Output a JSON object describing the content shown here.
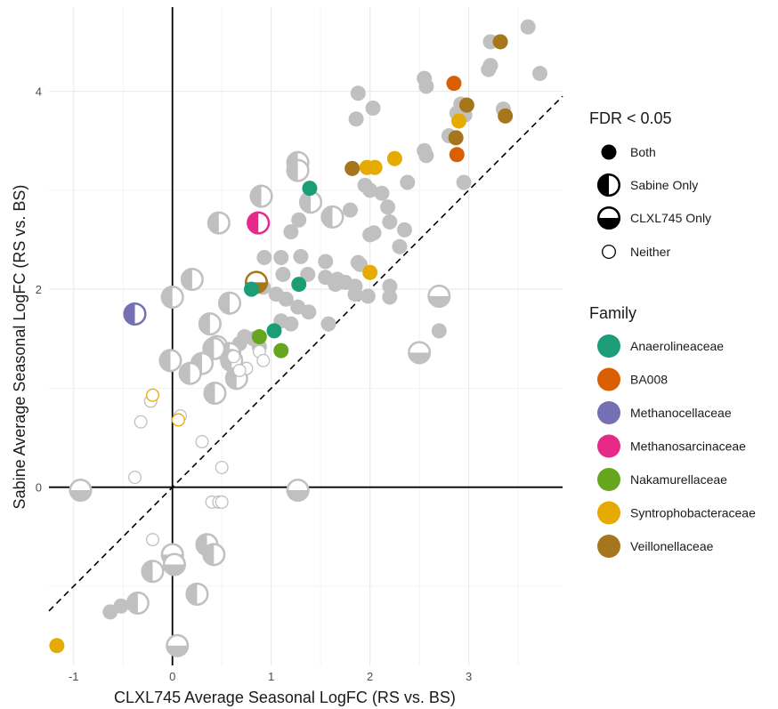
{
  "chart_data": {
    "type": "scatter",
    "xlabel": "CLXL745 Average Seasonal LogFC (RS vs. BS)",
    "ylabel": "Sabine Average Seasonal LogFC (RS vs. BS)",
    "xlim": [
      -1.25,
      3.95
    ],
    "ylim": [
      -1.8,
      4.85
    ],
    "x_ticks": [
      -1,
      0,
      1,
      2,
      3
    ],
    "y_ticks": [
      0,
      2,
      4
    ],
    "reference_line": {
      "type": "identity",
      "style": "dashed"
    },
    "grid": true,
    "legend_position": "right",
    "legends": {
      "fdr": {
        "title": "FDR < 0.05",
        "entries": [
          {
            "label": "Both",
            "style": "full"
          },
          {
            "label": "Sabine Only",
            "style": "left"
          },
          {
            "label": "CLXL745 Only",
            "style": "bottom"
          },
          {
            "label": "Neither",
            "style": "none"
          }
        ]
      },
      "family": {
        "title": "Family",
        "entries": [
          {
            "label": "Anaerolineaceae",
            "color": "#1b9e77"
          },
          {
            "label": "BA008",
            "color": "#d95f02"
          },
          {
            "label": "Methanocellaceae",
            "color": "#7570b3"
          },
          {
            "label": "Methanosarcinaceae",
            "color": "#e7298a"
          },
          {
            "label": "Nakamurellaceae",
            "color": "#66a61e"
          },
          {
            "label": "Syntrophobacteraceae",
            "color": "#e6ab02"
          },
          {
            "label": "Veillonellaceae",
            "color": "#a6761d"
          }
        ]
      }
    },
    "other_color": "#c0c0c0",
    "points": [
      {
        "x": 3.6,
        "y": 4.65,
        "fam": "other",
        "fdr": "full"
      },
      {
        "x": 3.22,
        "y": 4.5,
        "fam": "other",
        "fdr": "full"
      },
      {
        "x": 3.32,
        "y": 4.5,
        "fam": "Veillonellaceae",
        "fdr": "full"
      },
      {
        "x": 3.72,
        "y": 4.18,
        "fam": "other",
        "fdr": "full"
      },
      {
        "x": 3.2,
        "y": 4.22,
        "fam": "other",
        "fdr": "full"
      },
      {
        "x": 3.22,
        "y": 4.26,
        "fam": "other",
        "fdr": "full"
      },
      {
        "x": 2.55,
        "y": 4.13,
        "fam": "other",
        "fdr": "full"
      },
      {
        "x": 2.57,
        "y": 4.05,
        "fam": "other",
        "fdr": "full"
      },
      {
        "x": 2.85,
        "y": 4.08,
        "fam": "BA008",
        "fdr": "full"
      },
      {
        "x": 2.92,
        "y": 3.87,
        "fam": "other",
        "fdr": "full"
      },
      {
        "x": 2.98,
        "y": 3.86,
        "fam": "Veillonellaceae",
        "fdr": "full"
      },
      {
        "x": 2.88,
        "y": 3.78,
        "fam": "other",
        "fdr": "full"
      },
      {
        "x": 2.96,
        "y": 3.76,
        "fam": "other",
        "fdr": "full"
      },
      {
        "x": 3.35,
        "y": 3.82,
        "fam": "other",
        "fdr": "full"
      },
      {
        "x": 3.37,
        "y": 3.75,
        "fam": "Veillonellaceae",
        "fdr": "full"
      },
      {
        "x": 2.9,
        "y": 3.7,
        "fam": "Syntrophobacteraceae",
        "fdr": "full"
      },
      {
        "x": 2.8,
        "y": 3.55,
        "fam": "other",
        "fdr": "full"
      },
      {
        "x": 2.87,
        "y": 3.53,
        "fam": "Veillonellaceae",
        "fdr": "full"
      },
      {
        "x": 2.88,
        "y": 3.36,
        "fam": "BA008",
        "fdr": "full"
      },
      {
        "x": 2.55,
        "y": 3.4,
        "fam": "other",
        "fdr": "full"
      },
      {
        "x": 2.57,
        "y": 3.35,
        "fam": "other",
        "fdr": "full"
      },
      {
        "x": 2.95,
        "y": 3.08,
        "fam": "other",
        "fdr": "full"
      },
      {
        "x": 1.88,
        "y": 3.98,
        "fam": "other",
        "fdr": "full"
      },
      {
        "x": 2.03,
        "y": 3.83,
        "fam": "other",
        "fdr": "full"
      },
      {
        "x": 1.86,
        "y": 3.72,
        "fam": "other",
        "fdr": "full"
      },
      {
        "x": 2.25,
        "y": 3.32,
        "fam": "Syntrophobacteraceae",
        "fdr": "full"
      },
      {
        "x": 1.82,
        "y": 3.22,
        "fam": "Veillonellaceae",
        "fdr": "full"
      },
      {
        "x": 1.97,
        "y": 3.23,
        "fam": "Syntrophobacteraceae",
        "fdr": "full"
      },
      {
        "x": 2.05,
        "y": 3.23,
        "fam": "Syntrophobacteraceae",
        "fdr": "full"
      },
      {
        "x": 2.38,
        "y": 3.08,
        "fam": "other",
        "fdr": "full"
      },
      {
        "x": 1.95,
        "y": 3.05,
        "fam": "other",
        "fdr": "full"
      },
      {
        "x": 2.0,
        "y": 3.0,
        "fam": "other",
        "fdr": "full"
      },
      {
        "x": 2.12,
        "y": 2.97,
        "fam": "other",
        "fdr": "full"
      },
      {
        "x": 2.18,
        "y": 2.83,
        "fam": "other",
        "fdr": "full"
      },
      {
        "x": 1.8,
        "y": 2.8,
        "fam": "other",
        "fdr": "full"
      },
      {
        "x": 1.39,
        "y": 3.02,
        "fam": "Anaerolineaceae",
        "fdr": "full"
      },
      {
        "x": 1.27,
        "y": 3.28,
        "fam": "other",
        "fdr": "left",
        "big": true
      },
      {
        "x": 1.27,
        "y": 3.2,
        "fam": "other",
        "fdr": "left",
        "big": true
      },
      {
        "x": 1.4,
        "y": 2.88,
        "fam": "other",
        "fdr": "left",
        "big": true
      },
      {
        "x": 1.28,
        "y": 2.7,
        "fam": "other",
        "fdr": "full"
      },
      {
        "x": 1.62,
        "y": 2.73,
        "fam": "other",
        "fdr": "left",
        "big": true
      },
      {
        "x": 0.9,
        "y": 2.94,
        "fam": "other",
        "fdr": "left",
        "big": true
      },
      {
        "x": 0.47,
        "y": 2.67,
        "fam": "other",
        "fdr": "left",
        "big": true
      },
      {
        "x": 0.87,
        "y": 2.67,
        "fam": "Methanosarcinaceae",
        "fdr": "left",
        "big": true
      },
      {
        "x": 2.2,
        "y": 2.68,
        "fam": "other",
        "fdr": "full"
      },
      {
        "x": 2.04,
        "y": 2.57,
        "fam": "other",
        "fdr": "full"
      },
      {
        "x": 2.0,
        "y": 2.55,
        "fam": "other",
        "fdr": "full"
      },
      {
        "x": 2.35,
        "y": 2.6,
        "fam": "other",
        "fdr": "full"
      },
      {
        "x": 2.3,
        "y": 2.43,
        "fam": "other",
        "fdr": "full"
      },
      {
        "x": 1.2,
        "y": 2.58,
        "fam": "other",
        "fdr": "full"
      },
      {
        "x": 1.1,
        "y": 2.32,
        "fam": "other",
        "fdr": "full"
      },
      {
        "x": 1.3,
        "y": 2.33,
        "fam": "other",
        "fdr": "full"
      },
      {
        "x": 1.55,
        "y": 2.28,
        "fam": "other",
        "fdr": "full"
      },
      {
        "x": 1.88,
        "y": 2.27,
        "fam": "other",
        "fdr": "full"
      },
      {
        "x": 1.9,
        "y": 2.25,
        "fam": "other",
        "fdr": "full"
      },
      {
        "x": 0.93,
        "y": 2.32,
        "fam": "other",
        "fdr": "full"
      },
      {
        "x": 1.12,
        "y": 2.15,
        "fam": "other",
        "fdr": "full"
      },
      {
        "x": 1.37,
        "y": 2.15,
        "fam": "other",
        "fdr": "full"
      },
      {
        "x": 1.55,
        "y": 2.12,
        "fam": "other",
        "fdr": "full"
      },
      {
        "x": 1.67,
        "y": 2.1,
        "fam": "other",
        "fdr": "full"
      },
      {
        "x": 1.75,
        "y": 2.07,
        "fam": "other",
        "fdr": "full"
      },
      {
        "x": 1.85,
        "y": 2.03,
        "fam": "other",
        "fdr": "full"
      },
      {
        "x": 2.2,
        "y": 2.03,
        "fam": "other",
        "fdr": "full"
      },
      {
        "x": 2.2,
        "y": 1.92,
        "fam": "other",
        "fdr": "full"
      },
      {
        "x": 1.85,
        "y": 1.95,
        "fam": "other",
        "fdr": "full"
      },
      {
        "x": 1.98,
        "y": 1.93,
        "fam": "other",
        "fdr": "full"
      },
      {
        "x": 1.65,
        "y": 2.05,
        "fam": "other",
        "fdr": "full"
      },
      {
        "x": 2.0,
        "y": 2.17,
        "fam": "Syntrophobacteraceae",
        "fdr": "full"
      },
      {
        "x": 1.28,
        "y": 2.05,
        "fam": "Anaerolineaceae",
        "fdr": "full"
      },
      {
        "x": 0.85,
        "y": 2.07,
        "fam": "Veillonellaceae",
        "fdr": "bottom",
        "big": true
      },
      {
        "x": 0.8,
        "y": 2.0,
        "fam": "Anaerolineaceae",
        "fdr": "full"
      },
      {
        "x": 0.92,
        "y": 2.02,
        "fam": "other",
        "fdr": "full"
      },
      {
        "x": 1.05,
        "y": 1.95,
        "fam": "other",
        "fdr": "full"
      },
      {
        "x": 1.15,
        "y": 1.9,
        "fam": "other",
        "fdr": "full"
      },
      {
        "x": 1.27,
        "y": 1.82,
        "fam": "other",
        "fdr": "full"
      },
      {
        "x": 1.38,
        "y": 1.77,
        "fam": "other",
        "fdr": "full"
      },
      {
        "x": 0.2,
        "y": 2.1,
        "fam": "other",
        "fdr": "left",
        "big": true
      },
      {
        "x": 0.58,
        "y": 1.86,
        "fam": "other",
        "fdr": "left",
        "big": true
      },
      {
        "x": 0.0,
        "y": 1.92,
        "fam": "other",
        "fdr": "left",
        "big": true
      },
      {
        "x": 0.38,
        "y": 1.65,
        "fam": "other",
        "fdr": "left",
        "big": true
      },
      {
        "x": 1.1,
        "y": 1.68,
        "fam": "other",
        "fdr": "full"
      },
      {
        "x": 1.2,
        "y": 1.65,
        "fam": "other",
        "fdr": "full"
      },
      {
        "x": 1.58,
        "y": 1.65,
        "fam": "other",
        "fdr": "full"
      },
      {
        "x": 1.03,
        "y": 1.58,
        "fam": "Anaerolineaceae",
        "fdr": "full"
      },
      {
        "x": 0.88,
        "y": 1.52,
        "fam": "Nakamurellaceae",
        "fdr": "full"
      },
      {
        "x": 1.1,
        "y": 1.38,
        "fam": "Nakamurellaceae",
        "fdr": "full"
      },
      {
        "x": 0.73,
        "y": 1.52,
        "fam": "other",
        "fdr": "full"
      },
      {
        "x": 0.68,
        "y": 1.45,
        "fam": "other",
        "fdr": "full"
      },
      {
        "x": 0.82,
        "y": 1.5,
        "fam": "other",
        "fdr": "full"
      },
      {
        "x": 0.88,
        "y": 1.42,
        "fam": "other",
        "fdr": "full"
      },
      {
        "x": 0.45,
        "y": 1.42,
        "fam": "other",
        "fdr": "left",
        "big": true
      },
      {
        "x": 0.58,
        "y": 1.35,
        "fam": "other",
        "fdr": "left",
        "big": true
      },
      {
        "x": 0.42,
        "y": 1.4,
        "fam": "other",
        "fdr": "left",
        "big": true
      },
      {
        "x": 0.3,
        "y": 1.25,
        "fam": "other",
        "fdr": "left",
        "big": true
      },
      {
        "x": 0.6,
        "y": 1.28,
        "fam": "other",
        "fdr": "left",
        "big": true
      },
      {
        "x": 0.18,
        "y": 1.15,
        "fam": "other",
        "fdr": "left",
        "big": true
      },
      {
        "x": 0.65,
        "y": 1.1,
        "fam": "other",
        "fdr": "left",
        "big": true
      },
      {
        "x": 0.43,
        "y": 0.95,
        "fam": "other",
        "fdr": "left",
        "big": true
      },
      {
        "x": 0.88,
        "y": 1.37,
        "fam": "other",
        "fdr": "none"
      },
      {
        "x": 0.92,
        "y": 1.28,
        "fam": "other",
        "fdr": "none"
      },
      {
        "x": 0.62,
        "y": 1.32,
        "fam": "other",
        "fdr": "none"
      },
      {
        "x": 0.75,
        "y": 1.2,
        "fam": "other",
        "fdr": "none"
      },
      {
        "x": 0.68,
        "y": 1.18,
        "fam": "other",
        "fdr": "none"
      },
      {
        "x": -0.02,
        "y": 1.28,
        "fam": "other",
        "fdr": "left",
        "big": true
      },
      {
        "x": -0.38,
        "y": 1.75,
        "fam": "Methanocellaceae",
        "fdr": "left",
        "big": true
      },
      {
        "x": 2.7,
        "y": 1.93,
        "fam": "other",
        "fdr": "bottom",
        "big": true
      },
      {
        "x": 2.5,
        "y": 1.36,
        "fam": "other",
        "fdr": "bottom",
        "big": true
      },
      {
        "x": 2.7,
        "y": 1.58,
        "fam": "other",
        "fdr": "full"
      },
      {
        "x": -0.2,
        "y": 0.93,
        "fam": "Syntrophobacteraceae",
        "fdr": "none"
      },
      {
        "x": -0.22,
        "y": 0.87,
        "fam": "other",
        "fdr": "none"
      },
      {
        "x": -0.32,
        "y": 0.66,
        "fam": "other",
        "fdr": "none"
      },
      {
        "x": 0.08,
        "y": 0.72,
        "fam": "other",
        "fdr": "none"
      },
      {
        "x": 0.06,
        "y": 0.68,
        "fam": "Syntrophobacteraceae",
        "fdr": "none"
      },
      {
        "x": 0.3,
        "y": 0.46,
        "fam": "other",
        "fdr": "none"
      },
      {
        "x": 0.5,
        "y": 0.2,
        "fam": "other",
        "fdr": "none"
      },
      {
        "x": -0.38,
        "y": 0.1,
        "fam": "other",
        "fdr": "none"
      },
      {
        "x": -0.93,
        "y": -0.03,
        "fam": "other",
        "fdr": "bottom",
        "big": true
      },
      {
        "x": 1.27,
        "y": -0.03,
        "fam": "other",
        "fdr": "bottom",
        "big": true
      },
      {
        "x": 0.4,
        "y": -0.15,
        "fam": "other",
        "fdr": "none"
      },
      {
        "x": 0.47,
        "y": -0.15,
        "fam": "other",
        "fdr": "none"
      },
      {
        "x": 0.5,
        "y": -0.15,
        "fam": "other",
        "fdr": "none"
      },
      {
        "x": -0.2,
        "y": -0.53,
        "fam": "other",
        "fdr": "none"
      },
      {
        "x": 0.35,
        "y": -0.58,
        "fam": "other",
        "fdr": "left",
        "big": true
      },
      {
        "x": 0.42,
        "y": -0.68,
        "fam": "other",
        "fdr": "left",
        "big": true
      },
      {
        "x": 0.0,
        "y": -0.68,
        "fam": "other",
        "fdr": "bottom",
        "big": true
      },
      {
        "x": 0.02,
        "y": -0.78,
        "fam": "other",
        "fdr": "bottom",
        "big": true
      },
      {
        "x": -0.2,
        "y": -0.85,
        "fam": "other",
        "fdr": "left",
        "big": true
      },
      {
        "x": 0.25,
        "y": -1.08,
        "fam": "other",
        "fdr": "left",
        "big": true
      },
      {
        "x": -0.35,
        "y": -1.17,
        "fam": "other",
        "fdr": "left",
        "big": true
      },
      {
        "x": -0.52,
        "y": -1.2,
        "fam": "other",
        "fdr": "full"
      },
      {
        "x": -0.63,
        "y": -1.26,
        "fam": "other",
        "fdr": "full"
      },
      {
        "x": 0.05,
        "y": -1.6,
        "fam": "other",
        "fdr": "bottom",
        "big": true
      },
      {
        "x": -1.17,
        "y": -1.6,
        "fam": "Syntrophobacteraceae",
        "fdr": "full"
      }
    ]
  }
}
